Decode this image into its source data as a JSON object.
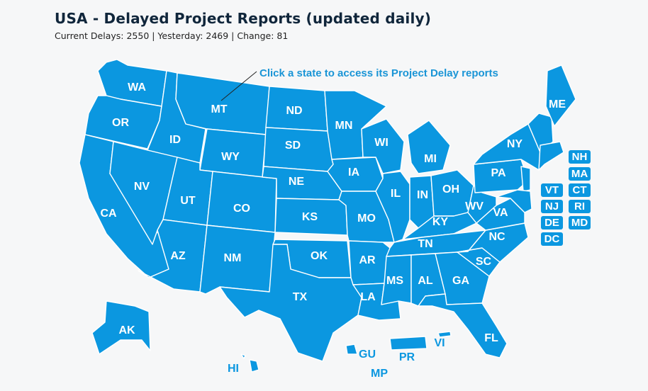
{
  "header": {
    "title": "USA - Delayed Project Reports (updated daily)",
    "subtitle": "Current Delays: 2550 | Yesterday: 2469 | Change: 81"
  },
  "map": {
    "callout": "Click a state to access its Project Delay reports",
    "fill_color": "#0b97e0",
    "labels": {
      "WA": "WA",
      "OR": "OR",
      "CA": "CA",
      "ID": "ID",
      "NV": "NV",
      "MT": "MT",
      "WY": "WY",
      "UT": "UT",
      "AZ": "AZ",
      "CO": "CO",
      "NM": "NM",
      "ND": "ND",
      "SD": "SD",
      "NE": "NE",
      "KS": "KS",
      "OK": "OK",
      "TX": "TX",
      "MN": "MN",
      "IA": "IA",
      "MO": "MO",
      "AR": "AR",
      "LA": "LA",
      "WI": "WI",
      "IL": "IL",
      "MI": "MI",
      "IN": "IN",
      "OH": "OH",
      "KY": "KY",
      "TN": "TN",
      "MS": "MS",
      "AL": "AL",
      "GA": "GA",
      "FL": "FL",
      "SC": "SC",
      "NC": "NC",
      "VA": "VA",
      "WV": "WV",
      "PA": "PA",
      "NY": "NY",
      "ME": "ME",
      "AK": "AK",
      "HI": "HI",
      "GU": "GU",
      "PR": "PR",
      "VI": "VI",
      "MP": "MP"
    },
    "small_states": {
      "NH": "NH",
      "MA": "MA",
      "VT": "VT",
      "CT": "CT",
      "NJ": "NJ",
      "RI": "RI",
      "DE": "DE",
      "MD": "MD",
      "DC": "DC"
    }
  }
}
